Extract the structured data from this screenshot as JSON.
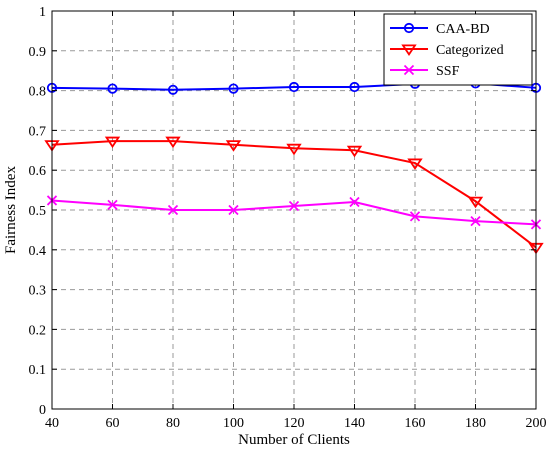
{
  "chart_data": {
    "type": "line",
    "title": "",
    "xlabel": "Number of Clients",
    "ylabel": "Fairness Index",
    "x": [
      40,
      60,
      80,
      100,
      120,
      140,
      160,
      180,
      200
    ],
    "xlim": [
      40,
      200
    ],
    "ylim": [
      0,
      1
    ],
    "x_ticks": [
      "40",
      "60",
      "80",
      "100",
      "120",
      "140",
      "160",
      "180",
      "200"
    ],
    "y_ticks": [
      "0",
      "0.1",
      "0.2",
      "0.3",
      "0.4",
      "0.5",
      "0.6",
      "0.7",
      "0.8",
      "0.9",
      "1"
    ],
    "grid": true,
    "legend_position": "top-right",
    "series": [
      {
        "name": "CAA-BD",
        "color": "#0000ff",
        "marker": "circle",
        "values": [
          0.807,
          0.805,
          0.802,
          0.805,
          0.809,
          0.809,
          0.817,
          0.818,
          0.807
        ]
      },
      {
        "name": "Categorized",
        "color": "#ff0000",
        "marker": "triangle-down",
        "values": [
          0.664,
          0.673,
          0.673,
          0.664,
          0.655,
          0.65,
          0.618,
          0.522,
          0.406
        ]
      },
      {
        "name": "SSF",
        "color": "#ff00ff",
        "marker": "x",
        "values": [
          0.524,
          0.513,
          0.5,
          0.5,
          0.51,
          0.52,
          0.484,
          0.472,
          0.464
        ]
      }
    ]
  }
}
